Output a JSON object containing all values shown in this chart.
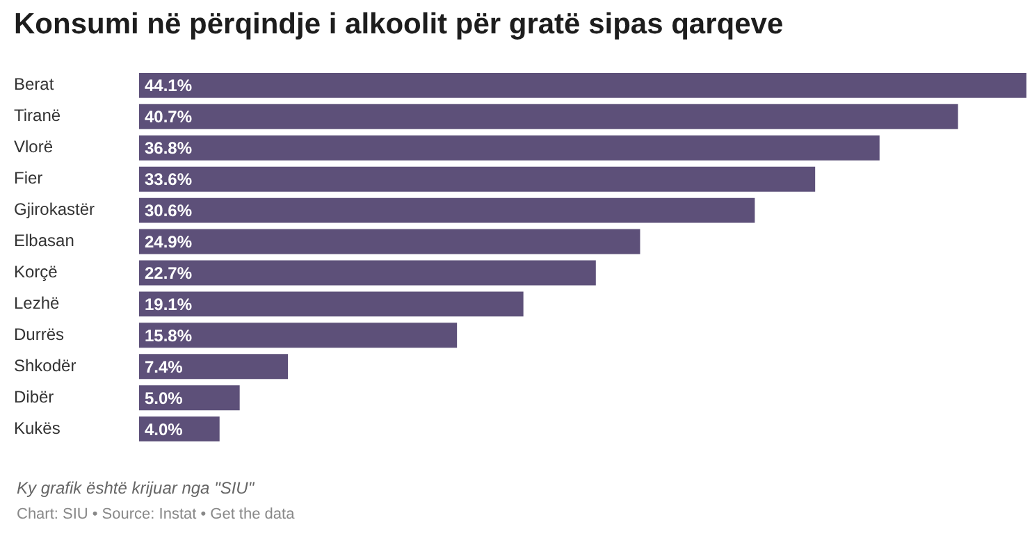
{
  "chart_data": {
    "type": "bar",
    "orientation": "horizontal",
    "title": "Konsumi në përqindje i alkoolit për gratë sipas qarqeve",
    "categories": [
      "Berat",
      "Tiranë",
      "Vlorë",
      "Fier",
      "Gjirokastër",
      "Elbasan",
      "Korçë",
      "Lezhë",
      "Durrës",
      "Shkodër",
      "Dibër",
      "Kukës"
    ],
    "values": [
      44.1,
      40.7,
      36.8,
      33.6,
      30.6,
      24.9,
      22.7,
      19.1,
      15.8,
      7.4,
      5.0,
      4.0
    ],
    "value_labels": [
      "44.1%",
      "40.7%",
      "36.8%",
      "33.6%",
      "30.6%",
      "24.9%",
      "22.7%",
      "19.1%",
      "15.8%",
      "7.4%",
      "5.0%",
      "4.0%"
    ],
    "color": "#5d5079",
    "annotations": [
      "Ky grafik është krijuar nga \"SIU\"",
      "Chart: SIU • Source: Instat • Get the data"
    ]
  }
}
